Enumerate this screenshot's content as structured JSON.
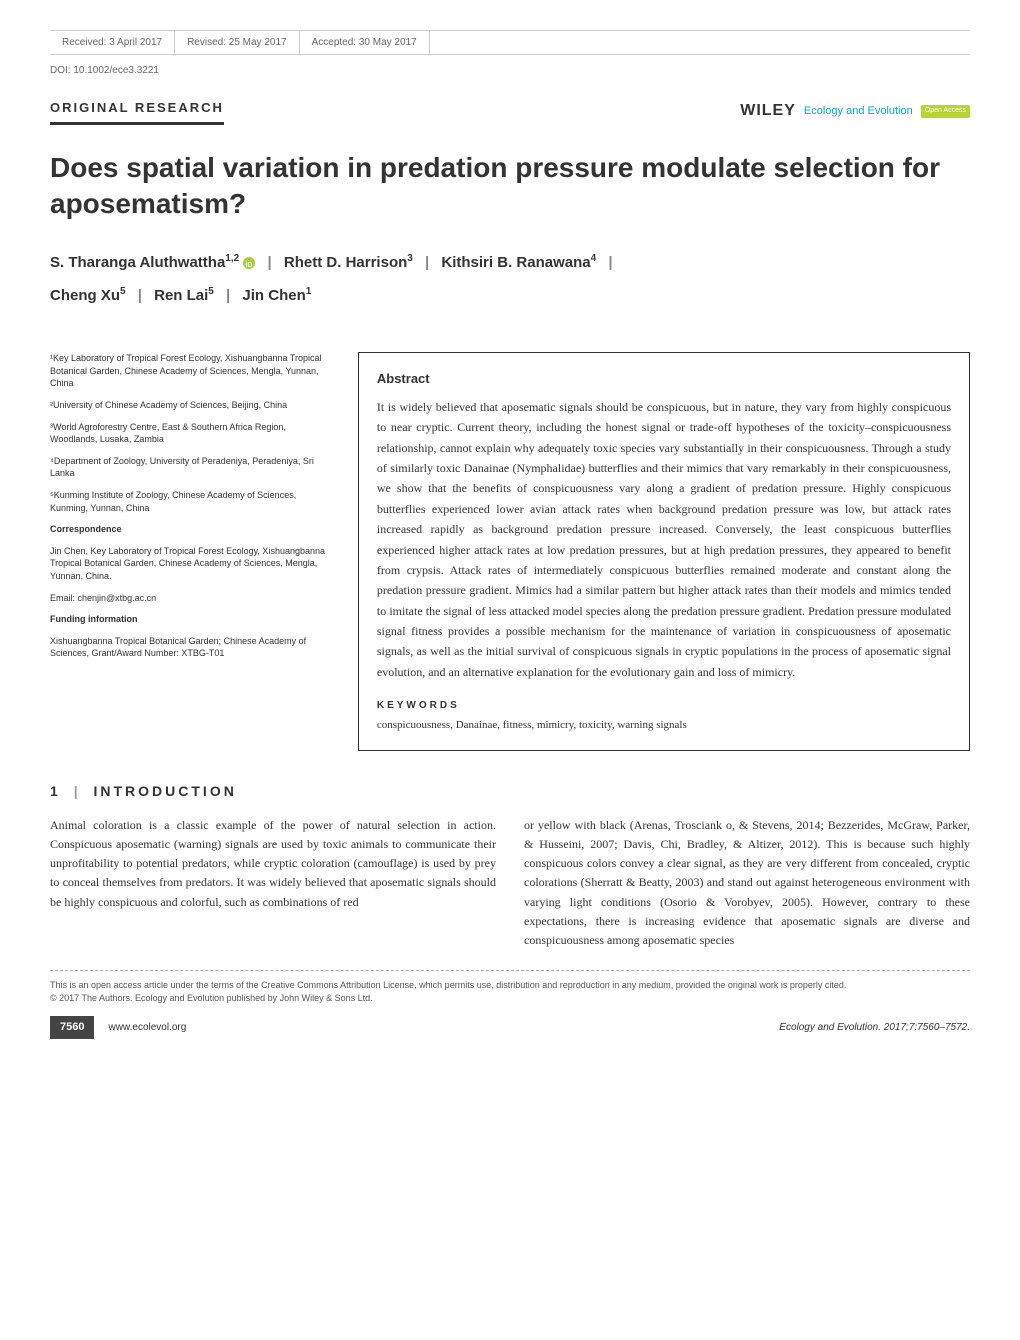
{
  "top_bar": {
    "received": "Received: 3 April 2017",
    "revised": "Revised: 25 May 2017",
    "accepted": "Accepted: 30 May 2017"
  },
  "doi": "DOI: 10.1002/ece3.3221",
  "article_type": "ORIGINAL RESEARCH",
  "branding": {
    "publisher": "WILEY",
    "journal": "Ecology and Evolution",
    "open_access": "Open Access"
  },
  "title": "Does spatial variation in predation pressure modulate selection for aposematism?",
  "authors": {
    "a1_name": "S. Tharanga Aluthwattha",
    "a1_sup": "1,2",
    "a2_name": "Rhett D. Harrison",
    "a2_sup": "3",
    "a3_name": "Kithsiri B. Ranawana",
    "a3_sup": "4",
    "a4_name": "Cheng Xu",
    "a4_sup": "5",
    "a5_name": "Ren Lai",
    "a5_sup": "5",
    "a6_name": "Jin Chen",
    "a6_sup": "1"
  },
  "affiliations": {
    "aff1": "¹Key Laboratory of Tropical Forest Ecology, Xishuangbanna Tropical Botanical Garden, Chinese Academy of Sciences, Mengla, Yunnan, China",
    "aff2": "²University of Chinese Academy of Sciences, Beijing, China",
    "aff3": "³World Agroforestry Centre, East & Southern Africa Region, Woodlands, Lusaka, Zambia",
    "aff4": "⁴Department of Zoology, University of Peradeniya, Peradeniya, Sri Lanka",
    "aff5": "⁵Kunming Institute of Zoology, Chinese Academy of Sciences, Kunming, Yunnan, China"
  },
  "correspondence": {
    "label": "Correspondence",
    "text": "Jin Chen, Key Laboratory of Tropical Forest Ecology, Xishuangbanna Tropical Botanical Garden, Chinese Academy of Sciences, Mengla, Yunnan, China.",
    "email": "Email: chenjin@xtbg.ac.cn"
  },
  "funding": {
    "label": "Funding information",
    "text": "Xishuangbanna Tropical Botanical Garden; Chinese Academy of Sciences, Grant/Award Number: XTBG-T01"
  },
  "abstract": {
    "heading": "Abstract",
    "text": "It is widely believed that aposematic signals should be conspicuous, but in nature, they vary from highly conspicuous to near cryptic. Current theory, including the honest signal or trade-off hypotheses of the toxicity–conspicuousness relationship, cannot explain why adequately toxic species vary substantially in their conspicuousness. Through a study of similarly toxic Danainae (Nymphalidae) butterflies and their mimics that vary remarkably in their conspicuousness, we show that the benefits of conspicuousness vary along a gradient of predation pressure. Highly conspicuous butterflies experienced lower avian attack rates when background predation pressure was low, but attack rates increased rapidly as background predation pressure increased. Conversely, the least conspicuous butterflies experienced higher attack rates at low predation pressures, but at high predation pressures, they appeared to benefit from crypsis. Attack rates of intermediately conspicuous butterflies remained moderate and constant along the predation pressure gradient. Mimics had a similar pattern but higher attack rates than their models and mimics tended to imitate the signal of less attacked model species along the predation pressure gradient. Predation pressure modulated signal fitness provides a possible mechanism for the maintenance of variation in conspicuousness of aposematic signals, as well as the initial survival of conspicuous signals in cryptic populations in the process of aposematic signal evolution, and an alternative explanation for the evolutionary gain and loss of mimicry.",
    "keywords_heading": "KEYWORDS",
    "keywords": "conspicuousness, Danainae, fitness, mimicry, toxicity, warning signals"
  },
  "intro": {
    "heading_number": "1",
    "heading_text": "INTRODUCTION",
    "col1": "Animal coloration is a classic example of the power of natural selection in action. Conspicuous aposematic (warning) signals are used by toxic animals to communicate their unprofitability to potential predators, while cryptic coloration (camouflage) is used by prey to conceal themselves from predators. It was widely believed that aposematic signals should be highly conspicuous and colorful, such as combinations of red",
    "col2": "or yellow with black (Arenas, Trosciank o, & Stevens, 2014; Bezzerides, McGraw, Parker, & Husseini, 2007; Davis, Chi, Bradley, & Altizer, 2012). This is because such highly conspicuous colors convey a clear signal, as they are very different from concealed, cryptic colorations (Sherratt & Beatty, 2003) and stand out against heterogeneous environment with varying light conditions (Osorio & Vorobyev, 2005). However, contrary to these expectations, there is increasing evidence that aposematic signals are diverse and conspicuousness among aposematic species"
  },
  "license": {
    "line1": "This is an open access article under the terms of the Creative Commons Attribution License, which permits use, distribution and reproduction in any medium, provided the original work is properly cited.",
    "line2": "© 2017 The Authors. Ecology and Evolution published by John Wiley & Sons Ltd."
  },
  "footer": {
    "page": "7560",
    "url": "www.ecolevol.org",
    "citation": "Ecology and Evolution. 2017;7:7560–7572."
  },
  "colors": {
    "teal": "#0ba5c2",
    "green": "#a6ce39",
    "badge_green": "#b8d432",
    "text": "#333333",
    "muted": "#666666"
  }
}
